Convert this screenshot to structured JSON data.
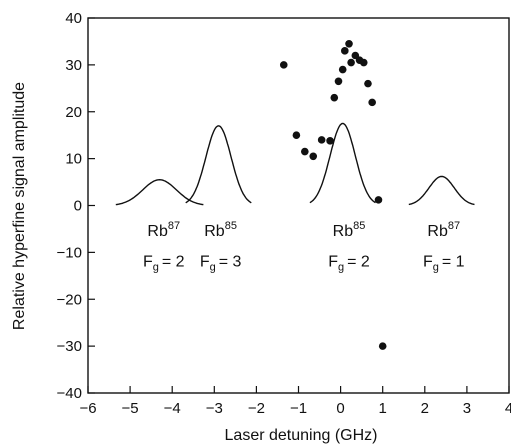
{
  "chart_data": {
    "type": "scatter",
    "title": "",
    "xlabel": "Laser detuning (GHz)",
    "ylabel": "Relative hyperfine signal amplitude",
    "xlim": [
      -6,
      4
    ],
    "ylim": [
      -40,
      40
    ],
    "xticks": [
      -6,
      -5,
      -4,
      -3,
      -2,
      -1,
      0,
      1,
      2,
      3,
      4
    ],
    "yticks": [
      -40,
      -30,
      -20,
      -10,
      0,
      10,
      20,
      30,
      40
    ],
    "xtick_labels": [
      "−6",
      "−5",
      "−4",
      "−3",
      "−2",
      "−1",
      "0",
      "1",
      "2",
      "3",
      "4"
    ],
    "ytick_labels": [
      "−40",
      "−30",
      "−20",
      "−10",
      "0",
      "10",
      "20",
      "30",
      "40"
    ],
    "grid": false,
    "legend": "none",
    "points": [
      {
        "x": -1.35,
        "y": 30
      },
      {
        "x": -1.05,
        "y": 15
      },
      {
        "x": -0.85,
        "y": 11.5
      },
      {
        "x": -0.65,
        "y": 10.5
      },
      {
        "x": -0.45,
        "y": 14
      },
      {
        "x": -0.25,
        "y": 13.8
      },
      {
        "x": -0.15,
        "y": 23
      },
      {
        "x": -0.05,
        "y": 26.5
      },
      {
        "x": 0.05,
        "y": 29
      },
      {
        "x": 0.1,
        "y": 33
      },
      {
        "x": 0.2,
        "y": 34.5
      },
      {
        "x": 0.25,
        "y": 30.5
      },
      {
        "x": 0.35,
        "y": 32
      },
      {
        "x": 0.45,
        "y": 31
      },
      {
        "x": 0.55,
        "y": 30.5
      },
      {
        "x": 0.65,
        "y": 26
      },
      {
        "x": 0.75,
        "y": 22
      },
      {
        "x": 0.9,
        "y": 1.2
      },
      {
        "x": 1.0,
        "y": -30
      }
    ],
    "peaks": [
      {
        "center": -4.3,
        "amplitude": 5.5,
        "width": 0.4
      },
      {
        "center": -2.9,
        "amplitude": 17,
        "width": 0.3
      },
      {
        "center": 0.05,
        "amplitude": 17.5,
        "width": 0.3
      },
      {
        "center": 2.4,
        "amplitude": 6.2,
        "width": 0.3
      }
    ],
    "annotations": [
      {
        "element": "Rb",
        "mass": "87",
        "sub": "g",
        "level": "F",
        "value": "= 2",
        "x": -4.2,
        "y1": -6.5,
        "y2": -13
      },
      {
        "element": "Rb",
        "mass": "85",
        "sub": "g",
        "level": "F",
        "value": "= 3",
        "x": -2.85,
        "y1": -6.5,
        "y2": -13
      },
      {
        "element": "Rb",
        "mass": "85",
        "sub": "g",
        "level": "F",
        "value": "= 2",
        "x": 0.2,
        "y1": -6.5,
        "y2": -13
      },
      {
        "element": "Rb",
        "mass": "87",
        "sub": "g",
        "level": "F",
        "value": "= 1",
        "x": 2.45,
        "y1": -6.5,
        "y2": -13
      }
    ]
  }
}
